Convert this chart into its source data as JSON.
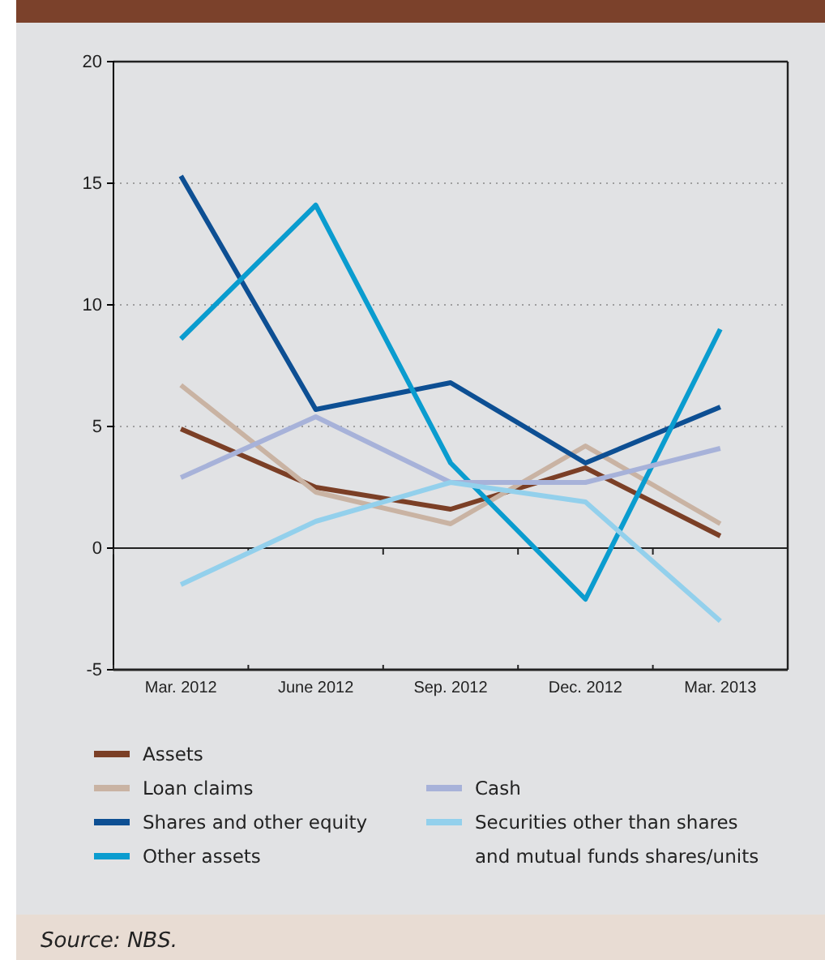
{
  "chart_data": {
    "type": "line",
    "categories": [
      "Mar. 2012",
      "June 2012",
      "Sep. 2012",
      "Dec. 2012",
      "Mar. 2013"
    ],
    "series": [
      {
        "name": "Assets",
        "color": "#7b3f26",
        "values": [
          4.9,
          2.5,
          1.6,
          3.3,
          0.5
        ]
      },
      {
        "name": "Loan claims",
        "color": "#c9b3a3",
        "values": [
          6.7,
          2.3,
          1.0,
          4.2,
          1.0
        ]
      },
      {
        "name": "Shares and other equity",
        "color": "#0d4f93",
        "values": [
          15.3,
          5.7,
          6.8,
          3.5,
          5.8
        ]
      },
      {
        "name": "Other assets",
        "color": "#0a9ccf",
        "values": [
          8.6,
          14.1,
          3.5,
          -2.1,
          9.0
        ]
      },
      {
        "name": "Cash",
        "color": "#a7b2d9",
        "values": [
          2.9,
          5.4,
          2.7,
          2.7,
          4.1
        ]
      },
      {
        "name": "Securities other than shares and mutual funds shares/units",
        "color": "#93d0ec",
        "values": [
          -1.5,
          1.1,
          2.7,
          1.9,
          -3.0
        ]
      }
    ],
    "ylim": [
      -5,
      20
    ],
    "yticks": [
      -5,
      0,
      5,
      10,
      15,
      20
    ],
    "grid": "y",
    "legend": "bottom",
    "line_style": "solid",
    "marker": "none",
    "annotations": [
      "Source: NBS."
    ]
  }
}
